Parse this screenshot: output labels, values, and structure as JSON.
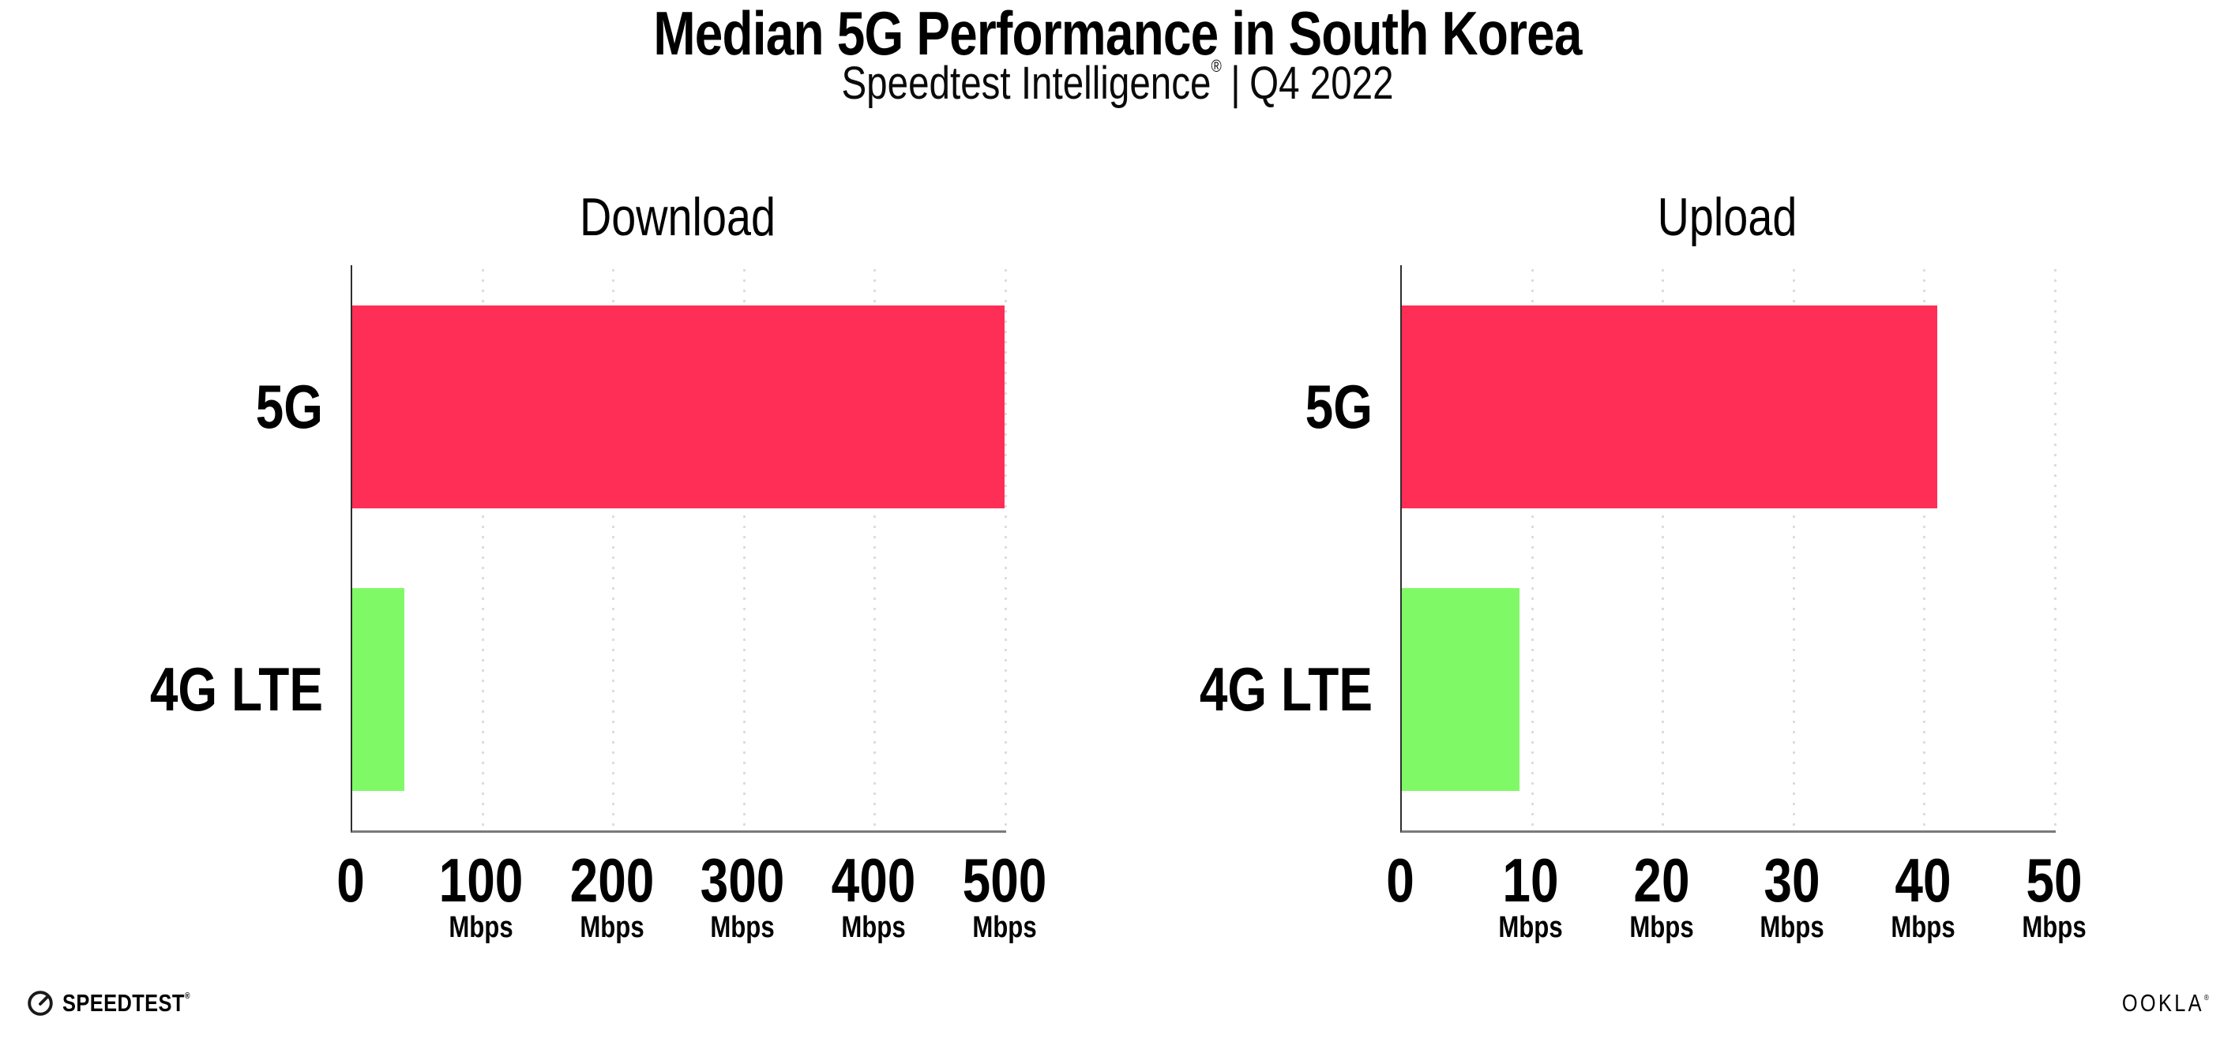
{
  "title": "Median 5G Performance in South Korea",
  "subtitle": {
    "brand": "Speedtest Intelligence",
    "reg_mark": "®",
    "separator": "|",
    "period": "Q4 2022"
  },
  "footer": {
    "speedtest_label": "SPEEDTEST",
    "speedtest_mark": "®",
    "speedtest_icon": "gauge-icon",
    "ookla_label": "OOKLA",
    "ookla_mark": "®"
  },
  "colors": {
    "bar_5g": "#FF2E56",
    "bar_4g_lte": "#7FFA66",
    "y_axis": "#2e2e2e",
    "x_axis": "#7a7a7a",
    "grid_dot": "#d8dae2",
    "text": "#000000",
    "background": "#FFFFFF"
  },
  "chart_data": [
    {
      "type": "bar",
      "orientation": "horizontal",
      "title": "Download",
      "categories": [
        "5G",
        "4G LTE"
      ],
      "values": [
        499,
        40
      ],
      "unit": "Mbps",
      "xlim": [
        0,
        500
      ],
      "xticks": [
        0,
        100,
        200,
        300,
        400,
        500
      ],
      "xtick_unit": "Mbps",
      "grid": "dotted vertical gridlines",
      "legend": "none",
      "bar_colors": [
        "#FF2E56",
        "#7FFA66"
      ]
    },
    {
      "type": "bar",
      "orientation": "horizontal",
      "title": "Upload",
      "categories": [
        "5G",
        "4G LTE"
      ],
      "values": [
        41,
        9
      ],
      "unit": "Mbps",
      "xlim": [
        0,
        50
      ],
      "xticks": [
        0,
        10,
        20,
        30,
        40,
        50
      ],
      "xtick_unit": "Mbps",
      "grid": "dotted vertical gridlines",
      "legend": "none",
      "bar_colors": [
        "#FF2E56",
        "#7FFA66"
      ]
    }
  ]
}
